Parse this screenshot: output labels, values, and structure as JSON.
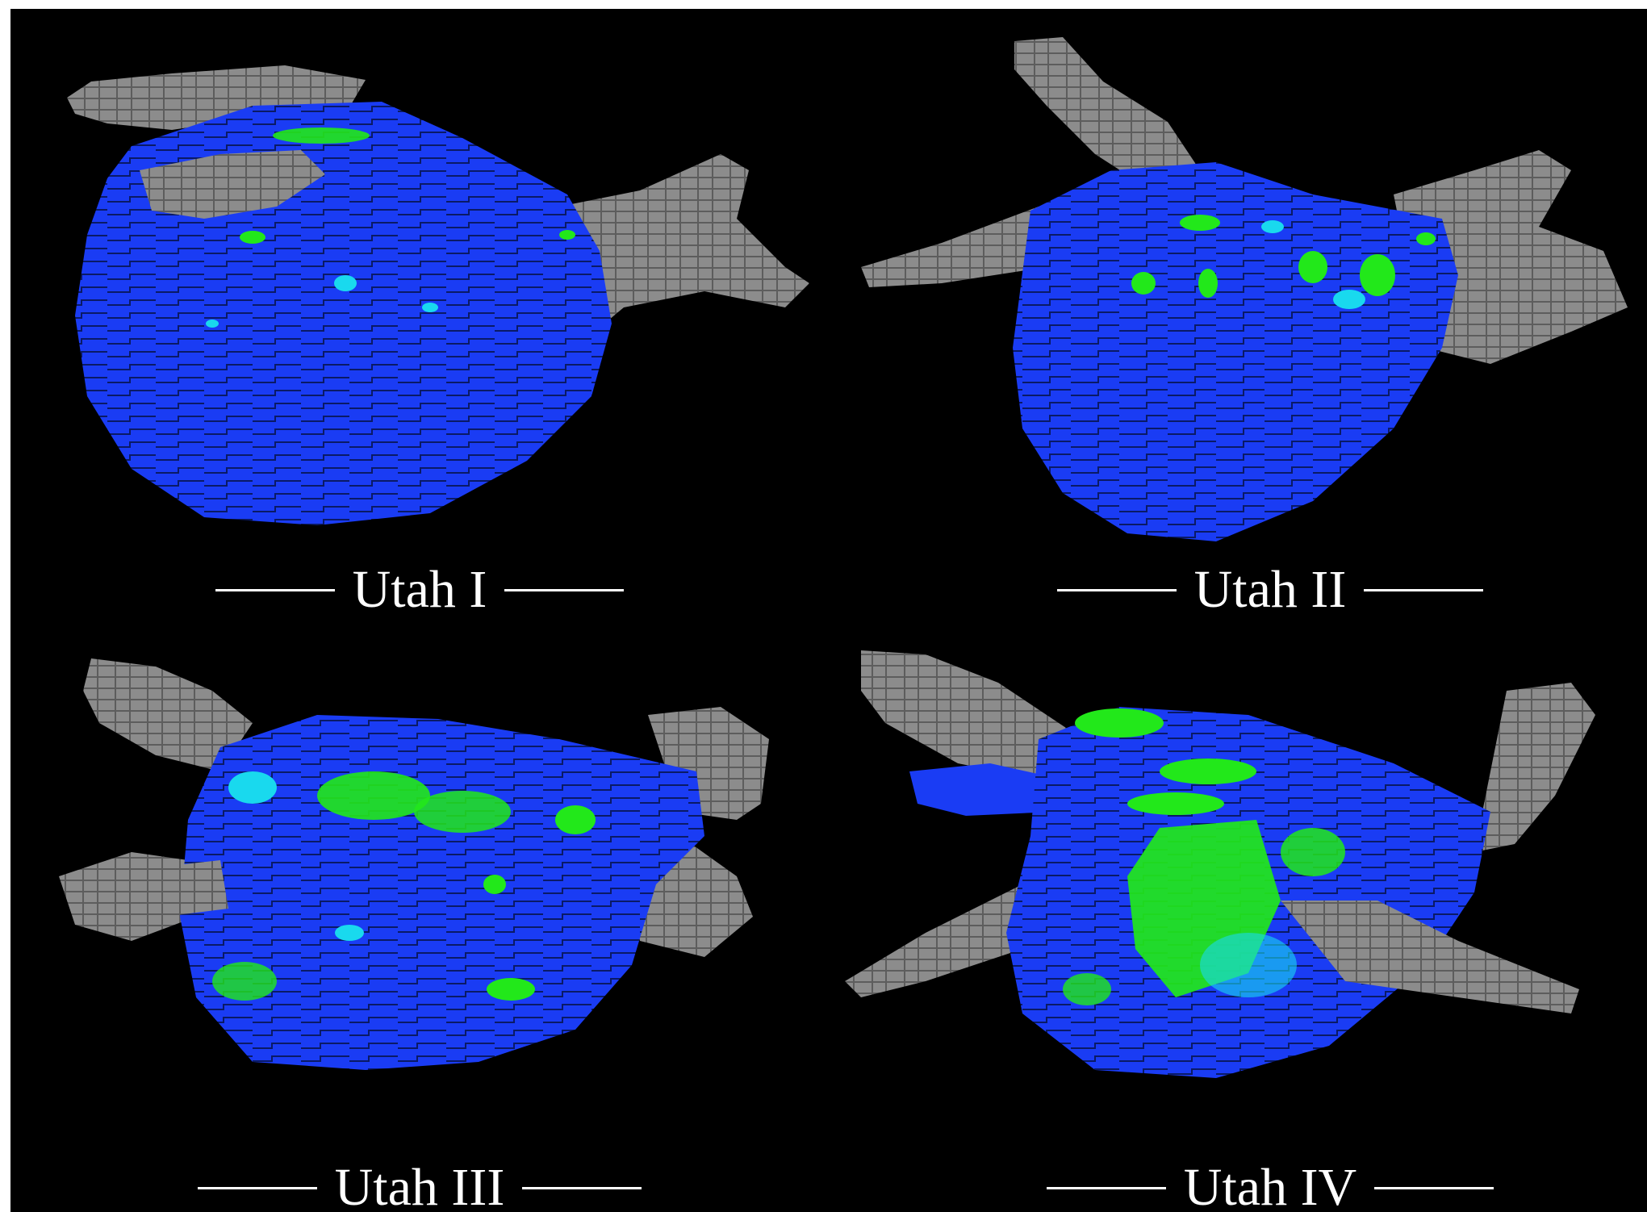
{
  "figure": {
    "panels": [
      {
        "id": "utah-1",
        "label": "Utah I",
        "fibrosis_extent": "low"
      },
      {
        "id": "utah-2",
        "label": "Utah II",
        "fibrosis_extent": "moderate"
      },
      {
        "id": "utah-3",
        "label": "Utah III",
        "fibrosis_extent": "high"
      },
      {
        "id": "utah-4",
        "label": "Utah IV",
        "fibrosis_extent": "extensive"
      }
    ],
    "colors": {
      "background": "#000000",
      "healthy_wall": "#1533f0",
      "fibrosis": "#22e81a",
      "fibrosis_border": "#19d9ee",
      "pulmonary_veins": "#8e8e8e",
      "caption_text": "#ffffff"
    }
  }
}
